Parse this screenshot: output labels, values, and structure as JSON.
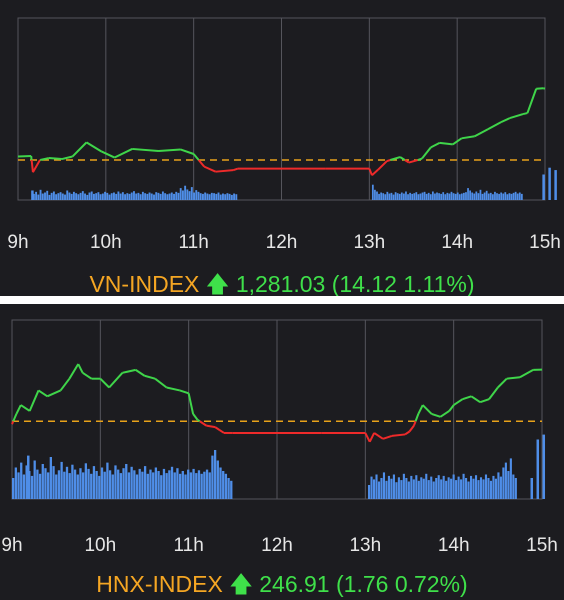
{
  "colors": {
    "background": "#1c1c20",
    "grid": "#55555c",
    "up_line": "#3fd54a",
    "down_line": "#ee2a2a",
    "reference_line": "#e8a21a",
    "volume_bars": "#4f8ee8",
    "tick_label": "#e6e6e6",
    "index_name": "#f5a623",
    "index_value": "#3fe04a"
  },
  "icons": {
    "trend": "arrow-up-icon"
  },
  "chart_data": [
    {
      "type": "line",
      "index_name": "VN-INDEX",
      "index_value": "1,281.03",
      "change": "(14.12 1.11%)",
      "x_tick_labels": [
        "9h",
        "10h",
        "11h",
        "12h",
        "13h",
        "14h",
        "15h"
      ],
      "x_domain_hours": [
        9,
        15
      ],
      "ylim": [
        1259,
        1295
      ],
      "reference": 1266.91,
      "grid": true,
      "series": [
        {
          "values": [
            [
              9.0,
              1267.6
            ],
            [
              9.15,
              1267.7
            ],
            [
              9.17,
              1264.5
            ],
            [
              9.25,
              1266.9
            ],
            [
              9.35,
              1267.3
            ],
            [
              9.5,
              1267.1
            ],
            [
              9.62,
              1267.6
            ],
            [
              9.78,
              1270.4
            ],
            [
              9.95,
              1268.6
            ],
            [
              10.1,
              1267.4
            ],
            [
              10.3,
              1269.1
            ],
            [
              10.6,
              1268.7
            ],
            [
              10.85,
              1269.0
            ],
            [
              11.0,
              1268.1
            ],
            [
              11.12,
              1265.6
            ],
            [
              11.25,
              1264.6
            ],
            [
              11.45,
              1264.9
            ],
            [
              11.5,
              1265.2
            ],
            [
              12.0,
              1265.2
            ],
            [
              12.5,
              1265.2
            ],
            [
              13.0,
              1265.2
            ],
            [
              13.03,
              1263.9
            ],
            [
              13.1,
              1265.0
            ],
            [
              13.2,
              1266.7
            ],
            [
              13.35,
              1267.5
            ],
            [
              13.45,
              1266.4
            ],
            [
              13.55,
              1266.9
            ],
            [
              13.6,
              1267.2
            ],
            [
              13.7,
              1269.4
            ],
            [
              13.8,
              1270.3
            ],
            [
              13.95,
              1270.0
            ],
            [
              14.05,
              1271.2
            ],
            [
              14.2,
              1271.6
            ],
            [
              14.35,
              1273.0
            ],
            [
              14.5,
              1274.4
            ],
            [
              14.6,
              1275.2
            ],
            [
              14.75,
              1276.0
            ],
            [
              14.8,
              1276.2
            ],
            [
              14.9,
              1281.0
            ],
            [
              14.98,
              1281.1
            ],
            [
              15.0,
              1281.03
            ]
          ]
        }
      ],
      "volume": {
        "morning_start": 9.17,
        "morning_end": 11.5,
        "afternoon_start": 13.03,
        "afternoon_end": 14.75,
        "ato_at": 9.15,
        "atc_at": 14.97,
        "ylim": [
          0,
          100
        ],
        "morning": [
          18,
          24,
          16,
          30,
          19,
          22,
          27,
          15,
          21,
          25,
          17,
          20,
          23,
          19,
          16,
          28,
          22,
          18,
          24,
          20,
          17,
          21,
          26,
          19,
          15,
          22,
          25,
          18,
          20,
          23,
          17,
          19,
          24,
          21,
          16,
          20,
          22,
          18,
          25,
          19,
          23,
          17,
          20,
          18,
          22,
          26,
          19,
          21,
          17,
          24,
          20,
          18,
          22,
          19,
          16,
          23,
          21,
          18,
          25,
          20,
          17,
          19,
          22,
          18,
          24,
          21,
          35,
          28,
          42,
          31,
          26,
          38,
          22,
          29,
          24,
          20,
          18,
          22,
          19,
          17,
          21,
          20,
          18,
          22,
          16,
          19,
          17,
          20,
          18,
          15,
          19,
          17
        ],
        "afternoon": [
          45,
          30,
          25,
          18,
          22,
          20,
          17,
          24,
          19,
          21,
          16,
          23,
          20,
          18,
          22,
          19,
          25,
          17,
          21,
          18,
          20,
          23,
          17,
          19,
          22,
          24,
          18,
          21,
          17,
          25,
          19,
          22,
          20,
          18,
          23,
          17,
          21,
          19,
          24,
          20,
          18,
          22,
          17,
          19,
          21,
          23,
          35,
          28,
          22,
          19,
          25,
          20,
          30,
          18,
          22,
          27,
          19,
          21,
          17,
          24,
          20,
          18,
          22,
          19,
          23,
          17,
          20,
          18,
          21,
          24,
          19,
          22,
          18
        ],
        "ato": 28,
        "atc": [
          75,
          95,
          88
        ]
      }
    },
    {
      "type": "line",
      "index_name": "HNX-INDEX",
      "index_value": "246.91",
      "change": "(1.76 0.72%)",
      "x_tick_labels": [
        "9h",
        "10h",
        "11h",
        "12h",
        "13h",
        "14h",
        "15h"
      ],
      "x_domain_hours": [
        9,
        15
      ],
      "ylim": [
        242.5,
        248.6
      ],
      "reference": 245.15,
      "grid": true,
      "series": [
        {
          "values": [
            [
              9.0,
              245.05
            ],
            [
              9.05,
              245.4
            ],
            [
              9.1,
              245.7
            ],
            [
              9.2,
              245.5
            ],
            [
              9.3,
              246.2
            ],
            [
              9.4,
              246.0
            ],
            [
              9.55,
              246.2
            ],
            [
              9.65,
              246.6
            ],
            [
              9.75,
              247.1
            ],
            [
              9.8,
              246.8
            ],
            [
              9.9,
              246.6
            ],
            [
              10.0,
              246.6
            ],
            [
              10.1,
              246.3
            ],
            [
              10.25,
              246.8
            ],
            [
              10.4,
              246.9
            ],
            [
              10.5,
              246.7
            ],
            [
              10.62,
              246.6
            ],
            [
              10.75,
              246.3
            ],
            [
              10.9,
              246.2
            ],
            [
              11.0,
              246.1
            ],
            [
              11.05,
              245.4
            ],
            [
              11.1,
              245.2
            ],
            [
              11.2,
              245.0
            ],
            [
              11.3,
              244.95
            ],
            [
              11.35,
              244.85
            ],
            [
              11.4,
              244.75
            ],
            [
              11.5,
              244.75
            ],
            [
              12.0,
              244.75
            ],
            [
              12.5,
              244.75
            ],
            [
              13.0,
              244.75
            ],
            [
              13.05,
              244.45
            ],
            [
              13.1,
              244.75
            ],
            [
              13.2,
              244.55
            ],
            [
              13.3,
              244.65
            ],
            [
              13.45,
              244.7
            ],
            [
              13.5,
              244.8
            ],
            [
              13.55,
              245.0
            ],
            [
              13.6,
              245.4
            ],
            [
              13.65,
              245.7
            ],
            [
              13.75,
              245.4
            ],
            [
              13.85,
              245.3
            ],
            [
              13.95,
              245.5
            ],
            [
              14.0,
              245.7
            ],
            [
              14.1,
              245.9
            ],
            [
              14.2,
              246.0
            ],
            [
              14.3,
              245.8
            ],
            [
              14.4,
              245.9
            ],
            [
              14.5,
              246.3
            ],
            [
              14.6,
              246.6
            ],
            [
              14.75,
              246.65
            ],
            [
              14.9,
              246.9
            ],
            [
              15.0,
              246.91
            ]
          ]
        }
      ],
      "volume": {
        "morning_start": 9.0,
        "morning_end": 11.5,
        "afternoon_start": 13.03,
        "afternoon_end": 14.72,
        "ato_at": 9.17,
        "atc_at": 14.87,
        "ylim": [
          0,
          100
        ],
        "morning": [
          30,
          45,
          38,
          52,
          35,
          48,
          40,
          33,
          55,
          42,
          36,
          50,
          44,
          38,
          60,
          47,
          35,
          41,
          53,
          39,
          46,
          37,
          49,
          42,
          35,
          44,
          38,
          51,
          43,
          36,
          47,
          40,
          33,
          45,
          39,
          52,
          41,
          35,
          48,
          42,
          37,
          44,
          50,
          38,
          46,
          41,
          35,
          43,
          39,
          47,
          36,
          42,
          38,
          45,
          40,
          34,
          43,
          37,
          41,
          46,
          38,
          44,
          36,
          40,
          35,
          42,
          38,
          43,
          37,
          41,
          36,
          39,
          42,
          38,
          62,
          70,
          55,
          45,
          40,
          36,
          30,
          26
        ],
        "afternoon": [
          20,
          32,
          28,
          35,
          25,
          30,
          38,
          26,
          33,
          29,
          35,
          24,
          31,
          27,
          36,
          30,
          25,
          33,
          28,
          34,
          26,
          31,
          29,
          36,
          27,
          32,
          25,
          30,
          34,
          28,
          33,
          26,
          31,
          29,
          35,
          27,
          32,
          28,
          36,
          30,
          25,
          33,
          29,
          34,
          27,
          31,
          28,
          35,
          30,
          26,
          33,
          29,
          38,
          32,
          45,
          52,
          40,
          58,
          35,
          30
        ],
        "ato": 62,
        "atc": [
          30,
          85,
          92
        ]
      }
    }
  ]
}
